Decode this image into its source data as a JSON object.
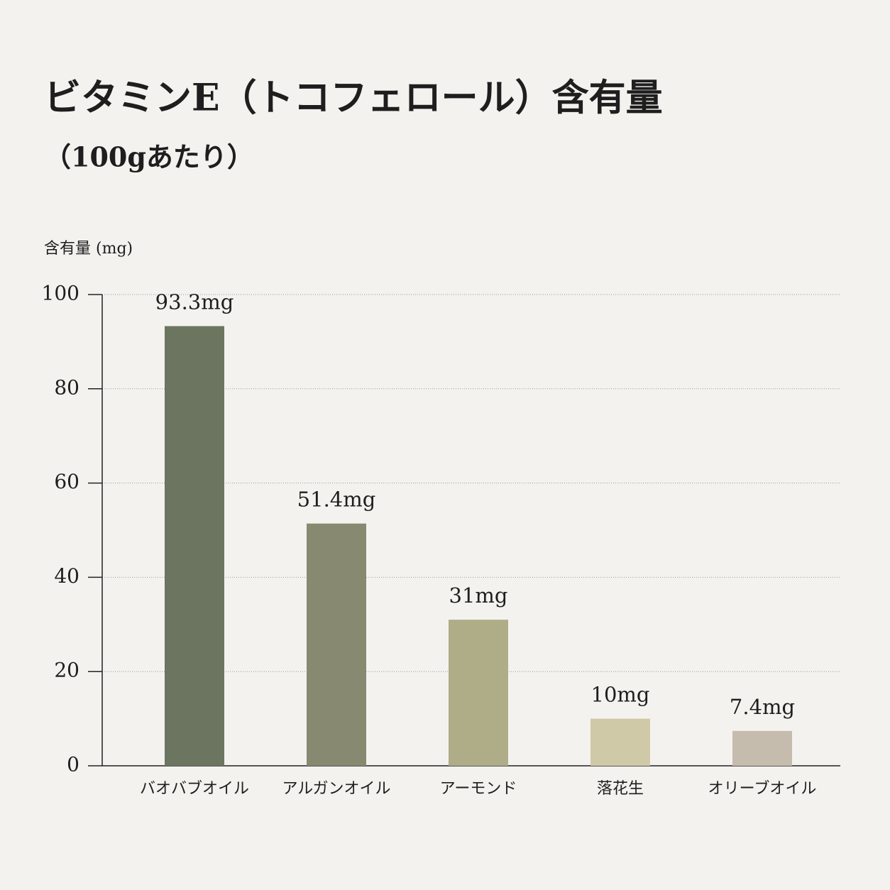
{
  "chart_data": {
    "type": "bar",
    "title": "ビタミンE（トコフェロール）含有量",
    "subtitle": "（100gあたり）",
    "y_label": "含有量 (mg)",
    "categories": [
      "バオバブオイル",
      "アルガンオイル",
      "アーモンド",
      "落花生",
      "オリーブオイル"
    ],
    "values": [
      93.3,
      51.4,
      31,
      10,
      7.4
    ],
    "value_labels": [
      "93.3mg",
      "51.4mg",
      "31mg",
      "10mg",
      "7.4mg"
    ],
    "colors": [
      "#6b7560",
      "#878970",
      "#aead88",
      "#cfc9a8",
      "#c6bcae"
    ],
    "ylim": [
      0,
      100
    ],
    "yticks": [
      0,
      20,
      40,
      60,
      80,
      100
    ],
    "grid": true
  }
}
